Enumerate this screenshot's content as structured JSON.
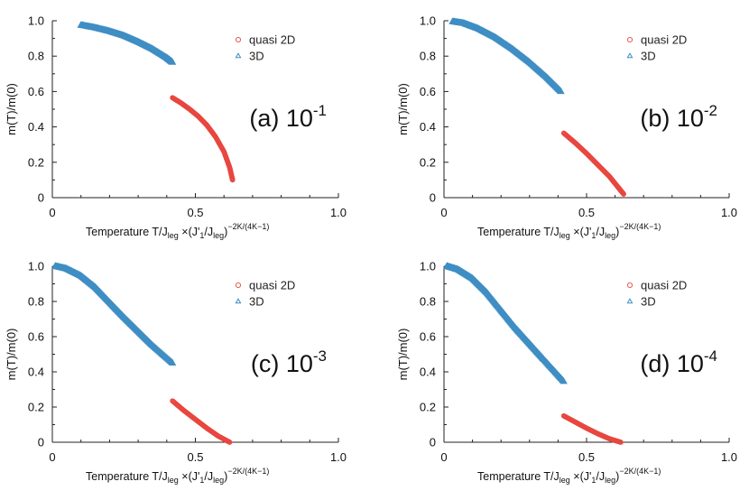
{
  "chart_data": [
    {
      "type": "scatter",
      "id": "a",
      "label_prefix": "(a) 10",
      "label_exponent": "-1",
      "xlim": [
        0,
        1.0
      ],
      "ylim": [
        0,
        1.0
      ],
      "xticks": [
        "0",
        "0.5",
        "1.0"
      ],
      "yticks": [
        "0",
        "0.2",
        "0.4",
        "0.6",
        "0.8",
        "1.0"
      ],
      "ylabel": "m(T)/m(0)",
      "xlabel_parts": {
        "main": "Temperature T/J",
        "leg": "leg",
        "times": " ×(J'",
        "one": "1",
        "slash": "/J",
        "leg2": "leg",
        "close": ")",
        "exp": "−2K/(4K−1)"
      },
      "legend": [
        "quasi 2D",
        "3D"
      ],
      "series": [
        {
          "name": "3D",
          "x": [
            0.1,
            0.15,
            0.2,
            0.25,
            0.3,
            0.35,
            0.4,
            0.42
          ],
          "y": [
            0.975,
            0.96,
            0.94,
            0.915,
            0.88,
            0.84,
            0.79,
            0.765
          ]
        },
        {
          "name": "quasi 2D",
          "x": [
            0.42,
            0.45,
            0.48,
            0.51,
            0.54,
            0.57,
            0.6,
            0.62,
            0.63
          ],
          "y": [
            0.565,
            0.535,
            0.5,
            0.46,
            0.41,
            0.345,
            0.26,
            0.17,
            0.1
          ]
        }
      ]
    },
    {
      "type": "scatter",
      "id": "b",
      "label_prefix": "(b) 10",
      "label_exponent": "-2",
      "xlim": [
        0,
        1.0
      ],
      "ylim": [
        0,
        1.0
      ],
      "xticks": [
        "0",
        "0.5",
        "1.0"
      ],
      "yticks": [
        "0",
        "0.2",
        "0.4",
        "0.6",
        "0.8",
        "1.0"
      ],
      "ylabel": "m(T)/m(0)",
      "xlabel_parts": {
        "main": "Temperature T/J",
        "leg": "leg",
        "times": " ×(J'",
        "one": "1",
        "slash": "/J",
        "leg2": "leg",
        "close": ")",
        "exp": "−2K/(4K−1)"
      },
      "legend": [
        "quasi 2D",
        "3D"
      ],
      "series": [
        {
          "name": "3D",
          "x": [
            0.03,
            0.07,
            0.12,
            0.18,
            0.24,
            0.3,
            0.36,
            0.41
          ],
          "y": [
            0.995,
            0.985,
            0.955,
            0.905,
            0.84,
            0.765,
            0.68,
            0.6
          ]
        },
        {
          "name": "quasi 2D",
          "x": [
            0.42,
            0.46,
            0.5,
            0.54,
            0.58,
            0.61,
            0.63
          ],
          "y": [
            0.365,
            0.31,
            0.25,
            0.185,
            0.12,
            0.06,
            0.02
          ]
        }
      ]
    },
    {
      "type": "scatter",
      "id": "c",
      "label_prefix": "(c) 10",
      "label_exponent": "-3",
      "xlim": [
        0,
        1.0
      ],
      "ylim": [
        0,
        1.0
      ],
      "xticks": [
        "0",
        "0.5",
        "1.0"
      ],
      "yticks": [
        "0",
        "0.2",
        "0.4",
        "0.6",
        "0.8",
        "1.0"
      ],
      "ylabel": "m(T)/m(0)",
      "xlabel_parts": {
        "main": "Temperature T/J",
        "leg": "leg",
        "times": " ×(J'",
        "one": "1",
        "slash": "/J",
        "leg2": "leg",
        "close": ")",
        "exp": "−2K/(4K−1)"
      },
      "legend": [
        "quasi 2D",
        "3D"
      ],
      "series": [
        {
          "name": "3D",
          "x": [
            0.01,
            0.05,
            0.1,
            0.15,
            0.2,
            0.25,
            0.3,
            0.35,
            0.42
          ],
          "y": [
            1.0,
            0.985,
            0.945,
            0.88,
            0.795,
            0.71,
            0.63,
            0.55,
            0.45
          ]
        },
        {
          "name": "quasi 2D",
          "x": [
            0.42,
            0.46,
            0.5,
            0.54,
            0.58,
            0.62
          ],
          "y": [
            0.235,
            0.18,
            0.13,
            0.08,
            0.035,
            0.0
          ]
        }
      ]
    },
    {
      "type": "scatter",
      "id": "d",
      "label_prefix": "(d) 10",
      "label_exponent": "-4",
      "xlim": [
        0,
        1.0
      ],
      "ylim": [
        0,
        1.0
      ],
      "xticks": [
        "0",
        "0.5",
        "1.0"
      ],
      "yticks": [
        "0",
        "0.2",
        "0.4",
        "0.6",
        "0.8",
        "1.0"
      ],
      "ylabel": "m(T)/m(0)",
      "xlabel_parts": {
        "main": "Temperature T/J",
        "leg": "leg",
        "times": " ×(J'",
        "one": "1",
        "slash": "/J",
        "leg2": "leg",
        "close": ")",
        "exp": "−2K/(4K−1)"
      },
      "legend": [
        "quasi 2D",
        "3D"
      ],
      "series": [
        {
          "name": "3D",
          "x": [
            0.01,
            0.05,
            0.1,
            0.15,
            0.2,
            0.25,
            0.3,
            0.35,
            0.42
          ],
          "y": [
            1.0,
            0.98,
            0.93,
            0.85,
            0.75,
            0.65,
            0.56,
            0.47,
            0.345
          ]
        },
        {
          "name": "quasi 2D",
          "x": [
            0.42,
            0.46,
            0.5,
            0.54,
            0.58,
            0.62
          ],
          "y": [
            0.15,
            0.115,
            0.08,
            0.048,
            0.02,
            0.0
          ]
        }
      ]
    }
  ],
  "colors": {
    "quasi2d": "#e8473f",
    "threeD": "#3f8ec4",
    "axis": "#222222"
  }
}
